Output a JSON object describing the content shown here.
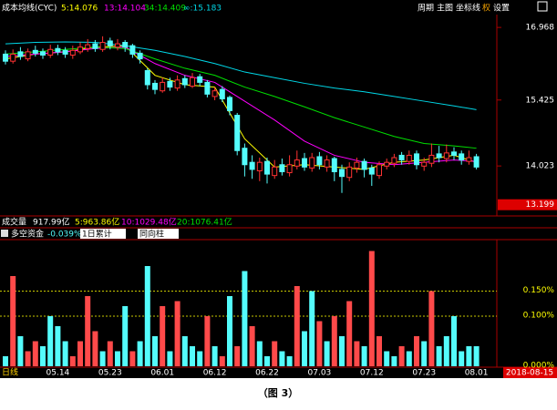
{
  "menu": [
    "周期",
    "主图",
    "坐标线",
    "权",
    "设置"
  ],
  "volume": {
    "label": "成交量",
    "total": "917.99亿",
    "averages": [
      {
        "text": "5:963.86亿",
        "color": "#ffff00"
      },
      {
        "text": "10:1029.48亿",
        "color": "#ff00ff"
      },
      {
        "text": "20:1076.41亿",
        "color": "#00e000"
      }
    ]
  },
  "caption": "（图 3）",
  "chart_data": [
    {
      "type": "candlestick",
      "title": "成本均线(CYC)",
      "up_color": "#ff3232",
      "down_color": "#54fcfc",
      "open": [
        16.4,
        16.25,
        16.45,
        16.3,
        16.48,
        16.45,
        16.38,
        16.52,
        16.48,
        16.38,
        16.45,
        16.52,
        16.62,
        16.5,
        16.68,
        16.55,
        16.65,
        16.58,
        16.42,
        16.05,
        15.78,
        15.62,
        15.82,
        15.68,
        15.88,
        15.72,
        15.92,
        15.8,
        15.5,
        15.65,
        15.48,
        15.1,
        14.4,
        14.1,
        13.92,
        14.12,
        13.82,
        14.05,
        13.88,
        14.02,
        14.18,
        13.98,
        14.22,
        14.0,
        14.18,
        13.95,
        13.78,
        13.98,
        14.12,
        13.98,
        13.82,
        14.02,
        14.08,
        14.25,
        14.12,
        14.28,
        14.02,
        14.08,
        14.28,
        14.18,
        14.32,
        14.28,
        14.12,
        14.22
      ],
      "close": [
        16.25,
        16.4,
        16.35,
        16.45,
        16.42,
        16.38,
        16.5,
        16.45,
        16.4,
        16.48,
        16.55,
        16.6,
        16.52,
        16.65,
        16.58,
        16.62,
        16.55,
        16.4,
        16.3,
        15.75,
        15.65,
        15.8,
        15.7,
        15.85,
        15.75,
        15.9,
        15.8,
        15.55,
        15.62,
        15.45,
        15.2,
        14.35,
        14.05,
        13.95,
        14.1,
        13.85,
        14.0,
        13.9,
        14.05,
        14.15,
        14.0,
        14.2,
        14.05,
        14.15,
        13.9,
        13.8,
        14.0,
        14.1,
        13.95,
        13.85,
        14.05,
        14.1,
        14.2,
        14.15,
        14.25,
        14.05,
        14.1,
        14.25,
        14.2,
        14.3,
        14.25,
        14.15,
        14.2,
        14.0
      ],
      "high": [
        16.48,
        16.5,
        16.55,
        16.52,
        16.58,
        16.52,
        16.6,
        16.6,
        16.55,
        16.58,
        16.65,
        16.72,
        16.7,
        16.78,
        16.75,
        16.72,
        16.7,
        16.62,
        16.48,
        16.1,
        15.85,
        15.9,
        15.9,
        15.95,
        15.95,
        16.0,
        15.98,
        15.85,
        15.7,
        15.72,
        15.52,
        15.15,
        14.5,
        14.25,
        14.2,
        14.2,
        14.15,
        14.18,
        14.25,
        14.35,
        14.3,
        14.3,
        14.32,
        14.25,
        14.22,
        14.05,
        14.1,
        14.2,
        14.18,
        14.05,
        14.12,
        14.18,
        14.28,
        14.32,
        14.35,
        14.35,
        14.2,
        14.5,
        14.45,
        14.48,
        14.42,
        14.35,
        14.35,
        14.28
      ],
      "low": [
        16.18,
        16.2,
        16.28,
        16.25,
        16.35,
        16.3,
        16.32,
        16.38,
        16.32,
        16.3,
        16.4,
        16.45,
        16.45,
        16.45,
        16.5,
        16.48,
        16.45,
        16.32,
        16.2,
        15.65,
        15.55,
        15.58,
        15.62,
        15.62,
        15.68,
        15.68,
        15.72,
        15.48,
        15.42,
        15.38,
        15.1,
        14.25,
        13.8,
        13.75,
        13.7,
        13.65,
        13.75,
        13.82,
        13.8,
        13.95,
        13.92,
        13.9,
        13.95,
        13.9,
        13.7,
        13.45,
        13.7,
        13.88,
        13.78,
        13.6,
        13.75,
        13.95,
        14.0,
        14.05,
        14.05,
        13.95,
        13.92,
        14.0,
        14.1,
        14.1,
        14.15,
        14.05,
        14.05,
        13.95
      ],
      "series": [
        {
          "name": "5:14.076",
          "color": "#ffff00",
          "x": [
            0,
            4,
            8,
            12,
            16,
            20,
            24,
            28,
            32,
            36,
            40,
            44,
            48,
            52,
            56,
            60,
            63
          ],
          "values": [
            16.3,
            16.4,
            16.45,
            16.55,
            16.58,
            15.95,
            15.75,
            15.7,
            14.6,
            14.0,
            14.05,
            14.0,
            13.95,
            14.1,
            14.15,
            14.25,
            14.1
          ]
        },
        {
          "name": "13:14.104",
          "color": "#ff00ff",
          "x": [
            0,
            4,
            8,
            12,
            16,
            20,
            24,
            28,
            32,
            36,
            40,
            44,
            48,
            52,
            56,
            60,
            63
          ],
          "values": [
            16.35,
            16.4,
            16.45,
            16.52,
            16.55,
            16.2,
            15.95,
            15.8,
            15.4,
            15.0,
            14.55,
            14.25,
            14.1,
            14.05,
            14.1,
            14.15,
            14.12
          ]
        },
        {
          "name": "34:14.409",
          "color": "#00e000",
          "x": [
            0,
            4,
            8,
            12,
            16,
            20,
            24,
            28,
            32,
            36,
            40,
            44,
            48,
            52,
            56,
            60,
            63
          ],
          "values": [
            16.4,
            16.45,
            16.5,
            16.55,
            16.52,
            16.3,
            16.1,
            15.95,
            15.7,
            15.5,
            15.28,
            15.05,
            14.85,
            14.65,
            14.5,
            14.45,
            14.4
          ]
        },
        {
          "name": "∞:15.183",
          "color": "#00d8e8",
          "x": [
            0,
            4,
            8,
            12,
            16,
            20,
            24,
            28,
            32,
            36,
            40,
            44,
            48,
            52,
            56,
            60,
            63
          ],
          "values": [
            16.62,
            16.65,
            16.66,
            16.65,
            16.58,
            16.48,
            16.35,
            16.2,
            16.02,
            15.9,
            15.78,
            15.68,
            15.6,
            15.5,
            15.4,
            15.3,
            15.22
          ]
        }
      ],
      "ylim": [
        12.98,
        17.28
      ],
      "yticks": [
        14.023,
        15.425,
        16.968
      ],
      "price_marker": 13.199
    },
    {
      "type": "bar",
      "title": "多空资金",
      "value_text": "-0.039%",
      "controls": [
        "1日累计",
        "同向柱"
      ],
      "x_label": "日线",
      "date": "2018-08-15",
      "categories": [
        null,
        null,
        null,
        null,
        null,
        null,
        null,
        "05.14",
        null,
        null,
        null,
        null,
        null,
        null,
        "05.23",
        null,
        null,
        null,
        null,
        null,
        null,
        "06.01",
        null,
        null,
        null,
        null,
        null,
        null,
        "06.12",
        null,
        null,
        null,
        null,
        null,
        null,
        "06.22",
        null,
        null,
        null,
        null,
        null,
        null,
        "07.03",
        null,
        null,
        null,
        null,
        null,
        null,
        "07.12",
        null,
        null,
        null,
        null,
        null,
        null,
        "07.23",
        null,
        null,
        null,
        null,
        null,
        null,
        "08.01"
      ],
      "values": [
        0.02,
        0.18,
        0.06,
        0.03,
        0.05,
        0.04,
        0.1,
        0.08,
        0.05,
        0.02,
        0.05,
        0.14,
        0.07,
        0.03,
        0.05,
        0.03,
        0.12,
        0.03,
        0.05,
        0.2,
        0.06,
        0.12,
        0.03,
        0.13,
        0.06,
        0.04,
        0.03,
        0.1,
        0.04,
        0.02,
        0.14,
        0.04,
        0.19,
        0.08,
        0.05,
        0.02,
        0.05,
        0.03,
        0.02,
        0.16,
        0.07,
        0.15,
        0.09,
        0.05,
        0.1,
        0.06,
        0.13,
        0.05,
        0.04,
        0.23,
        0.06,
        0.03,
        0.02,
        0.04,
        0.03,
        0.06,
        0.05,
        0.15,
        0.04,
        0.06,
        0.1,
        0.03,
        0.04,
        0.04
      ],
      "colors": [
        "#54fcfc",
        "#ff4a4a",
        "#54fcfc",
        "#ff4a4a",
        "#ff4a4a",
        "#54fcfc",
        "#54fcfc",
        "#54fcfc",
        "#54fcfc",
        "#ff4a4a",
        "#ff4a4a",
        "#ff4a4a",
        "#ff4a4a",
        "#54fcfc",
        "#ff4a4a",
        "#54fcfc",
        "#54fcfc",
        "#ff4a4a",
        "#54fcfc",
        "#54fcfc",
        "#54fcfc",
        "#ff4a4a",
        "#54fcfc",
        "#ff4a4a",
        "#54fcfc",
        "#54fcfc",
        "#54fcfc",
        "#ff4a4a",
        "#54fcfc",
        "#ff4a4a",
        "#54fcfc",
        "#ff4a4a",
        "#54fcfc",
        "#ff4a4a",
        "#54fcfc",
        "#54fcfc",
        "#ff4a4a",
        "#54fcfc",
        "#54fcfc",
        "#ff4a4a",
        "#54fcfc",
        "#54fcfc",
        "#ff4a4a",
        "#54fcfc",
        "#ff4a4a",
        "#54fcfc",
        "#ff4a4a",
        "#ff4a4a",
        "#54fcfc",
        "#ff4a4a",
        "#ff4a4a",
        "#54fcfc",
        "#54fcfc",
        "#ff4a4a",
        "#54fcfc",
        "#ff4a4a",
        "#54fcfc",
        "#ff4a4a",
        "#54fcfc",
        "#54fcfc",
        "#54fcfc",
        "#54fcfc",
        "#54fcfc",
        "#54fcfc"
      ],
      "ylim": [
        0,
        0.25
      ],
      "yticks": [
        {
          "value": 0.15,
          "label": "0.150%"
        },
        {
          "value": 0.1,
          "label": "0.100%"
        },
        {
          "value": 0,
          "label": "0.000%"
        }
      ]
    }
  ]
}
